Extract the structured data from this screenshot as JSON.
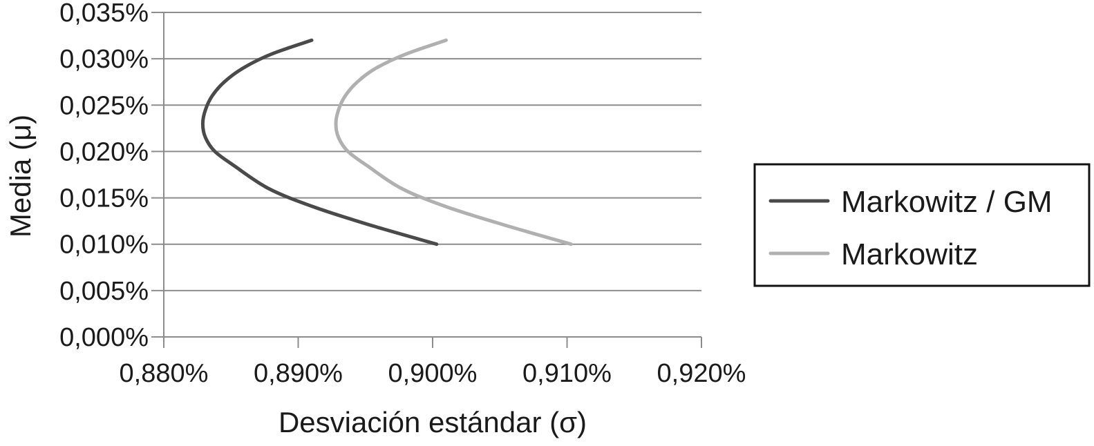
{
  "chart_data": {
    "type": "line",
    "title": "",
    "xlabel": "Desviación estándar (σ)",
    "ylabel": "Media (μ)",
    "xlim": [
      0.88,
      0.92
    ],
    "ylim": [
      0.0,
      0.035
    ],
    "x_ticks": [
      "0,880%",
      "0,890%",
      "0,900%",
      "0,910%",
      "0,920%"
    ],
    "y_ticks": [
      "0,000%",
      "0,005%",
      "0,010%",
      "0,015%",
      "0,020%",
      "0,025%",
      "0,030%",
      "0,035%"
    ],
    "grid": true,
    "legend_position": "right",
    "series": [
      {
        "name": "Markowitz / GM",
        "color": "#4a4a4a",
        "x": [
          0.891,
          0.888,
          0.8859,
          0.8845,
          0.8836,
          0.8831,
          0.8829,
          0.8831,
          0.8838,
          0.8852,
          0.8878,
          0.8912,
          0.8955,
          0.9003
        ],
        "y": [
          0.032,
          0.0305,
          0.029,
          0.0275,
          0.026,
          0.0245,
          0.023,
          0.0215,
          0.02,
          0.0185,
          0.016,
          0.014,
          0.012,
          0.01
        ]
      },
      {
        "name": "Markowitz",
        "color": "#b0b0b0",
        "x": [
          0.901,
          0.898,
          0.8958,
          0.8944,
          0.8935,
          0.893,
          0.8928,
          0.893,
          0.8937,
          0.8951,
          0.8977,
          0.9011,
          0.9055,
          0.9103
        ],
        "y": [
          0.032,
          0.0305,
          0.029,
          0.0275,
          0.026,
          0.0245,
          0.023,
          0.0215,
          0.02,
          0.0185,
          0.016,
          0.014,
          0.012,
          0.01
        ]
      }
    ]
  }
}
